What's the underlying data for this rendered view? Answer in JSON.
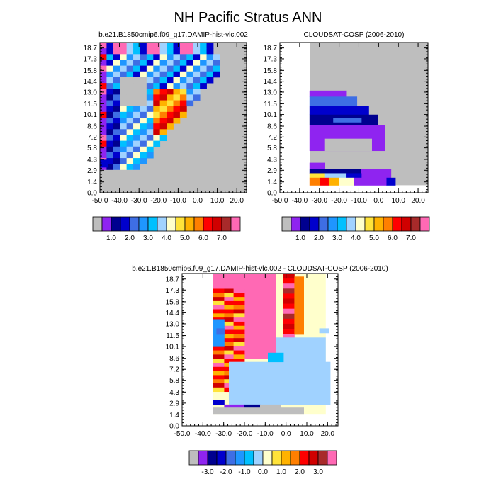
{
  "page": {
    "title": "NH Pacific Stratus ANN"
  },
  "chart_data": [
    {
      "id": "model",
      "type": "heatmap",
      "title": "b.e21.B1850cmip6.f09_g17.DAMIP-hist-vlc.002",
      "x_ticks": [
        -50.0,
        -40.0,
        -30.0,
        -20.0,
        -10.0,
        0.0,
        10.0,
        20.0
      ],
      "x_tick_labels": [
        "-50.0",
        "-40.0",
        "-30.0",
        "-20.0",
        "-10.0",
        "0.0",
        "10.0",
        "20.0"
      ],
      "xlim": [
        -50,
        25
      ],
      "y_tick_labels": [
        "0.0",
        "1.4",
        "2.9",
        "4.3",
        "5.8",
        "7.2",
        "8.6",
        "10.1",
        "11.5",
        "13.0",
        "14.4",
        "15.8",
        "17.3",
        "18.7"
      ],
      "ylim": [
        0,
        19.4
      ],
      "colorbar": {
        "colors": [
          "#bebebe",
          "#8f24f0",
          "#00008f",
          "#0000cd",
          "#3e6ee4",
          "#1f96ff",
          "#00c0ff",
          "#a0d2ff",
          "#ffffcc",
          "#ffe33a",
          "#ffb200",
          "#ff7f00",
          "#ff0000",
          "#d00000",
          "#a82a2a",
          "#ff69b4"
        ],
        "labels": [
          "1.0",
          "2.0",
          "3.0",
          "4.0",
          "5.0",
          "6.0",
          "7.0"
        ]
      },
      "mask_note": "grey = missing"
    },
    {
      "id": "obs",
      "type": "heatmap",
      "title": "CLOUDSAT-COSP (2006-2010)",
      "x_ticks": [
        -50.0,
        -40.0,
        -30.0,
        -20.0,
        -10.0,
        0.0,
        10.0,
        20.0
      ],
      "x_tick_labels": [
        "-50.0",
        "-40.0",
        "-30.0",
        "-20.0",
        "-10.0",
        "0.0",
        "10.0",
        "20.0"
      ],
      "xlim": [
        -50,
        25
      ],
      "y_tick_labels": [
        "0.0",
        "1.4",
        "2.9",
        "4.3",
        "5.8",
        "7.2",
        "8.6",
        "10.1",
        "11.5",
        "13.0",
        "14.4",
        "15.8",
        "17.3",
        "18.7"
      ],
      "ylim": [
        0,
        19.4
      ],
      "colorbar": {
        "colors": [
          "#bebebe",
          "#8f24f0",
          "#00008f",
          "#0000cd",
          "#3e6ee4",
          "#1f96ff",
          "#00c0ff",
          "#a0d2ff",
          "#ffffcc",
          "#ffe33a",
          "#ffb200",
          "#ff7f00",
          "#ff0000",
          "#d00000",
          "#a82a2a",
          "#ff69b4"
        ],
        "labels": [
          "1.0",
          "2.0",
          "3.0",
          "4.0",
          "5.0",
          "6.0",
          "7.0"
        ]
      }
    },
    {
      "id": "diff",
      "type": "heatmap",
      "title": "b.e21.B1850cmip6.f09_g17.DAMIP-hist-vlc.002 - CLOUDSAT-COSP (2006-2010)",
      "x_ticks": [
        -50.0,
        -40.0,
        -30.0,
        -20.0,
        -10.0,
        0.0,
        10.0,
        20.0
      ],
      "x_tick_labels": [
        "-50.0",
        "-40.0",
        "-30.0",
        "-20.0",
        "-10.0",
        "0.0",
        "10.0",
        "20.0"
      ],
      "xlim": [
        -50,
        25
      ],
      "y_tick_labels": [
        "0.0",
        "1.4",
        "2.9",
        "4.3",
        "5.8",
        "7.2",
        "8.6",
        "10.1",
        "11.5",
        "13.0",
        "14.4",
        "15.8",
        "17.3",
        "18.7"
      ],
      "ylim": [
        0,
        19.4
      ],
      "colorbar": {
        "colors": [
          "#bebebe",
          "#8f24f0",
          "#00008f",
          "#0000cd",
          "#3e6ee4",
          "#1f96ff",
          "#00c0ff",
          "#a0d2ff",
          "#ffffcc",
          "#ffe33a",
          "#ffb200",
          "#ff7f00",
          "#ff0000",
          "#d00000",
          "#a82a2a",
          "#ff69b4"
        ],
        "labels": [
          "-3.0",
          "-2.0",
          "-1.0",
          "0.0",
          "1.0",
          "2.0",
          "3.0"
        ]
      }
    }
  ]
}
